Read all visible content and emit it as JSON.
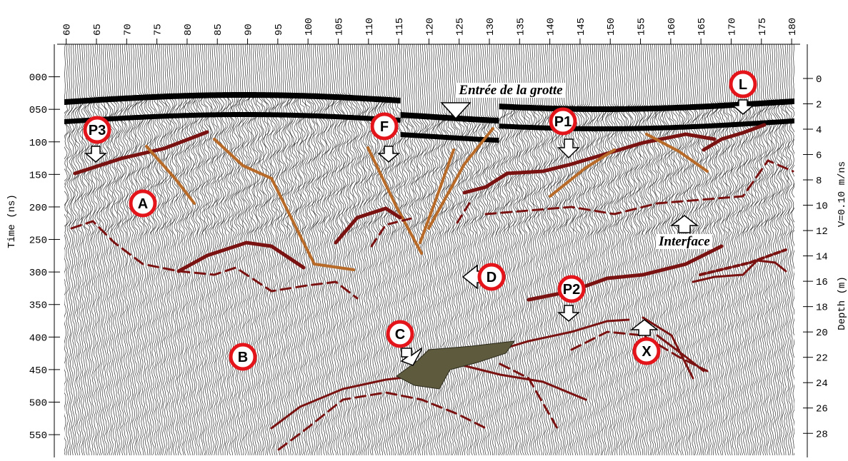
{
  "chart_data": {
    "type": "radargram",
    "x_axis_position": "top",
    "xlim": [
      58.5,
      182
    ],
    "xticks": [
      60,
      65,
      70,
      75,
      80,
      85,
      90,
      95,
      100,
      105,
      110,
      115,
      120,
      125,
      130,
      135,
      140,
      145,
      150,
      155,
      160,
      165,
      170,
      175,
      180
    ],
    "y_label": "Time (ns)",
    "ylim": [
      -50,
      585
    ],
    "yticks": [
      {
        "value": 0,
        "label": "000"
      },
      {
        "value": 50,
        "label": "050"
      },
      100,
      150,
      200,
      250,
      300,
      350,
      400,
      450,
      500,
      550
    ],
    "y2_label": "Depth (m)",
    "y2_note": "V=0.10 m/ns",
    "y2lim": [
      -2.7,
      29.9
    ],
    "y2ticks": [
      0,
      2,
      4,
      6,
      8,
      10,
      12,
      14,
      16,
      18,
      20,
      22,
      24,
      26,
      28
    ],
    "annotations": [
      "P3",
      "A",
      "F",
      "P1",
      "L",
      "D",
      "P2",
      "C",
      "B",
      "X"
    ],
    "labels": [
      "Entrée de la grotte",
      "Interface"
    ]
  }
}
